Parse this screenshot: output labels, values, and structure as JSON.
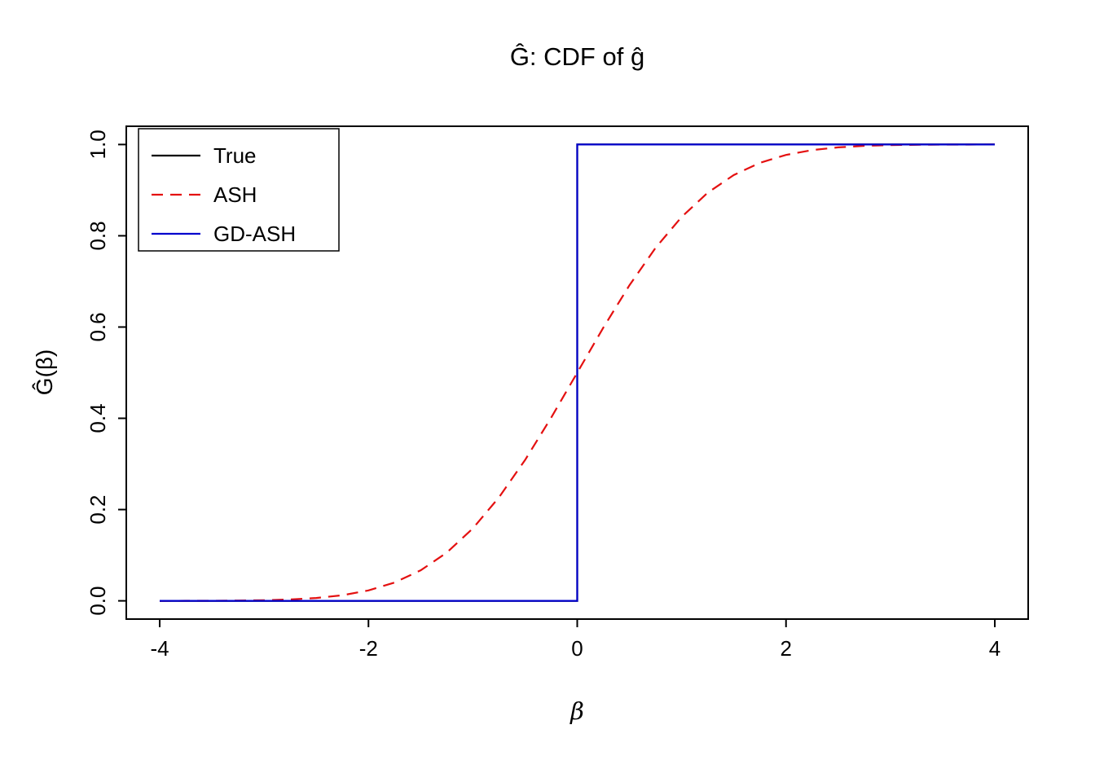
{
  "chart_data": {
    "type": "line",
    "title": "Ĝ: CDF of ĝ",
    "xlabel": "β",
    "ylabel": "Ĝ(β)",
    "xlim": [
      -4,
      4
    ],
    "ylim": [
      0,
      1
    ],
    "grid": false,
    "background": "#ffffff",
    "x_ticks": [
      -4,
      -2,
      0,
      2,
      4
    ],
    "x_tick_labels": [
      "-4",
      "-2",
      "0",
      "2",
      "4"
    ],
    "y_ticks": [
      0.0,
      0.2,
      0.4,
      0.6,
      0.8,
      1.0
    ],
    "y_tick_labels": [
      "0.0",
      "0.2",
      "0.4",
      "0.6",
      "0.8",
      "1.0"
    ],
    "legend": {
      "position": "top-left",
      "entries": [
        {
          "label": "True",
          "color": "#000000",
          "dash": "solid"
        },
        {
          "label": "ASH",
          "color": "#e41010",
          "dash": "dashed"
        },
        {
          "label": "GD-ASH",
          "color": "#0000cd",
          "dash": "solid"
        }
      ]
    },
    "series": [
      {
        "name": "True",
        "color": "#000000",
        "style": "solid",
        "x": [
          -4,
          0,
          0,
          4
        ],
        "y": [
          0,
          0,
          1,
          1
        ]
      },
      {
        "name": "ASH",
        "color": "#e41010",
        "style": "dashed",
        "x": [
          -4,
          -3.75,
          -3.5,
          -3.25,
          -3,
          -2.75,
          -2.5,
          -2.25,
          -2,
          -1.75,
          -1.5,
          -1.25,
          -1,
          -0.75,
          -0.5,
          -0.25,
          0,
          0.25,
          0.5,
          0.75,
          1,
          1.25,
          1.5,
          1.75,
          2,
          2.25,
          2.5,
          2.75,
          3,
          3.25,
          3.5,
          3.75,
          4
        ],
        "y": [
          0.0,
          0.0001,
          0.0002,
          0.0006,
          0.0013,
          0.003,
          0.0062,
          0.0122,
          0.0228,
          0.0401,
          0.0668,
          0.1056,
          0.1587,
          0.2266,
          0.3085,
          0.4013,
          0.5,
          0.5987,
          0.6915,
          0.7734,
          0.8413,
          0.8944,
          0.9332,
          0.9599,
          0.9772,
          0.9878,
          0.9938,
          0.997,
          0.9987,
          0.9994,
          0.9998,
          0.9999,
          1.0
        ]
      },
      {
        "name": "GD-ASH",
        "color": "#0000cd",
        "style": "solid",
        "x": [
          -4,
          0,
          0,
          4
        ],
        "y": [
          0,
          0,
          1,
          1
        ]
      }
    ]
  }
}
